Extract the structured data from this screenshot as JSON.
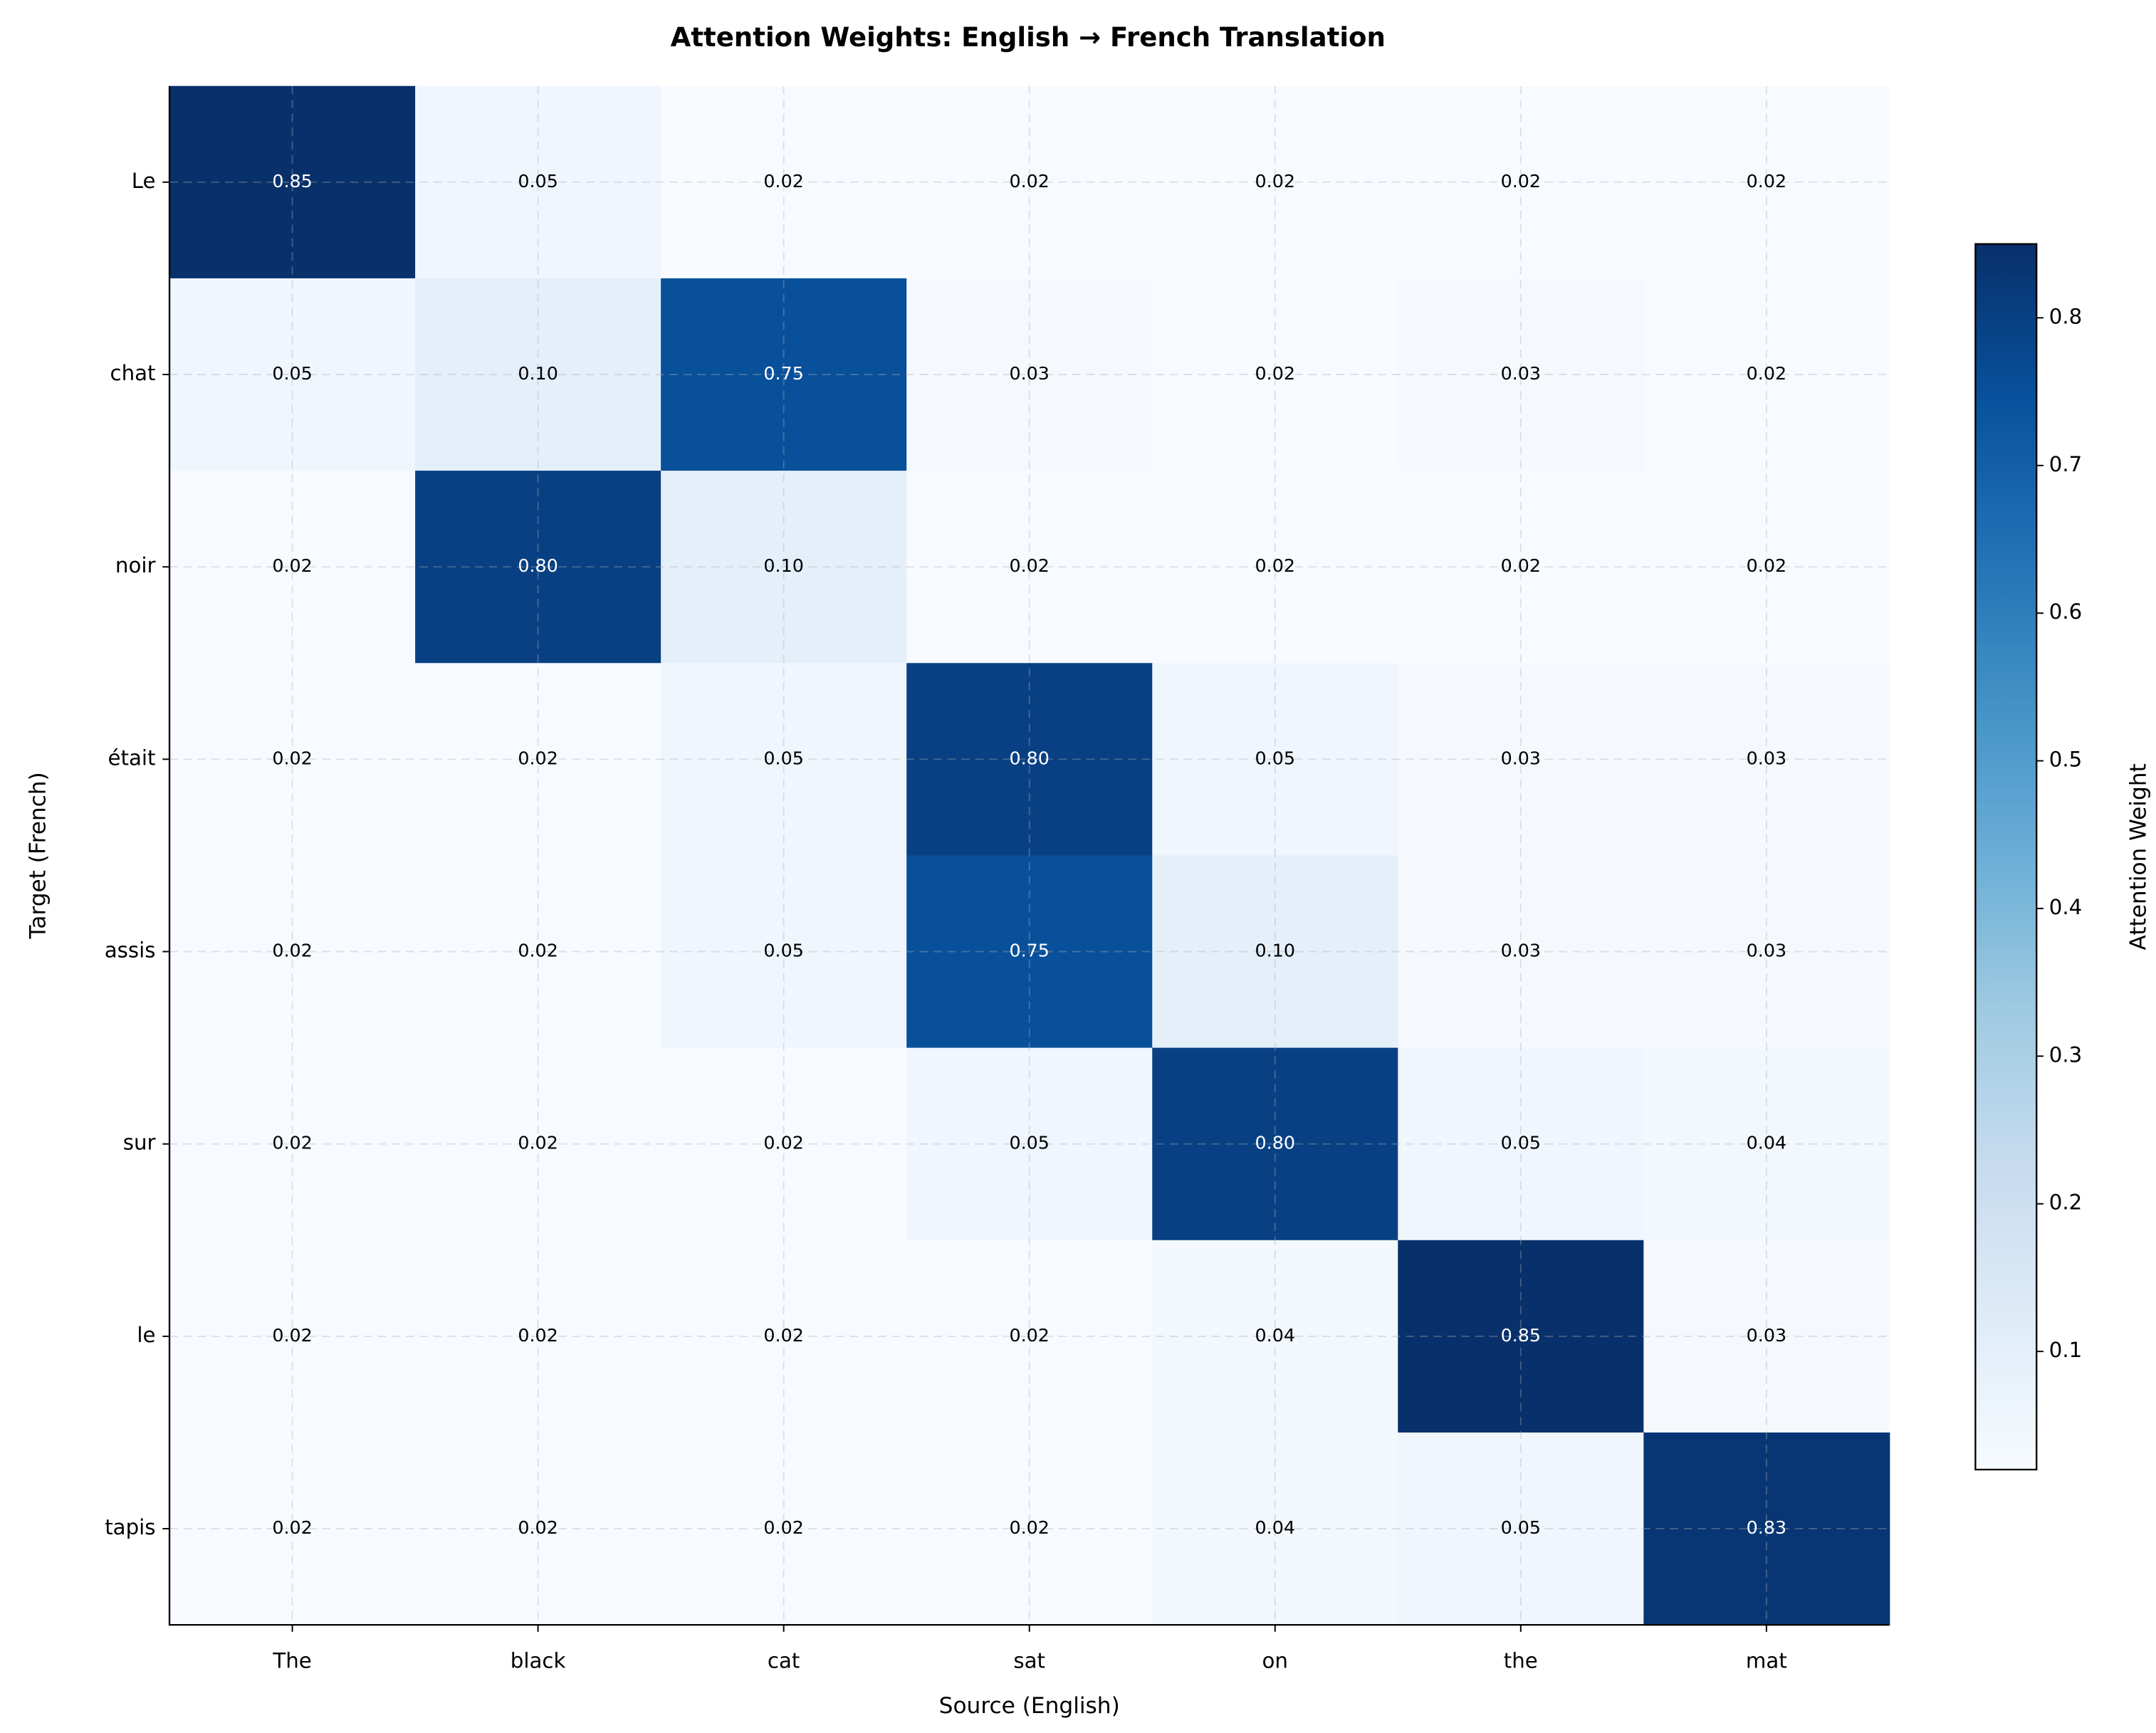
{
  "chart_data": {
    "type": "heatmap",
    "title": "Attention Weights: English → French Translation",
    "x_label": "Source (English)",
    "y_label": "Target (French)",
    "x": [
      "The",
      "black",
      "cat",
      "sat",
      "on",
      "the",
      "mat"
    ],
    "y": [
      "Le",
      "chat",
      "noir",
      "était",
      "assis",
      "sur",
      "le",
      "tapis"
    ],
    "values": [
      [
        0.85,
        0.05,
        0.02,
        0.02,
        0.02,
        0.02,
        0.02
      ],
      [
        0.05,
        0.1,
        0.75,
        0.03,
        0.02,
        0.03,
        0.02
      ],
      [
        0.02,
        0.8,
        0.1,
        0.02,
        0.02,
        0.02,
        0.02
      ],
      [
        0.02,
        0.02,
        0.05,
        0.8,
        0.05,
        0.03,
        0.03
      ],
      [
        0.02,
        0.02,
        0.05,
        0.75,
        0.1,
        0.03,
        0.03
      ],
      [
        0.02,
        0.02,
        0.02,
        0.05,
        0.8,
        0.05,
        0.04
      ],
      [
        0.02,
        0.02,
        0.02,
        0.02,
        0.04,
        0.85,
        0.03
      ],
      [
        0.02,
        0.02,
        0.02,
        0.02,
        0.04,
        0.05,
        0.83
      ]
    ],
    "value_labels": [
      [
        "0.85",
        "0.05",
        "0.02",
        "0.02",
        "0.02",
        "0.02",
        "0.02"
      ],
      [
        "0.05",
        "0.10",
        "0.75",
        "0.03",
        "0.02",
        "0.03",
        "0.02"
      ],
      [
        "0.02",
        "0.80",
        "0.10",
        "0.02",
        "0.02",
        "0.02",
        "0.02"
      ],
      [
        "0.02",
        "0.02",
        "0.05",
        "0.80",
        "0.05",
        "0.03",
        "0.03"
      ],
      [
        "0.02",
        "0.02",
        "0.05",
        "0.75",
        "0.10",
        "0.03",
        "0.03"
      ],
      [
        "0.02",
        "0.02",
        "0.02",
        "0.05",
        "0.80",
        "0.05",
        "0.04"
      ],
      [
        "0.02",
        "0.02",
        "0.02",
        "0.02",
        "0.04",
        "0.85",
        "0.03"
      ],
      [
        "0.02",
        "0.02",
        "0.02",
        "0.02",
        "0.04",
        "0.05",
        "0.83"
      ]
    ],
    "colormap": "Blues",
    "colorbar_label": "Attention Weight",
    "clim": [
      0.02,
      0.85
    ],
    "cticks": [
      0.1,
      0.2,
      0.3,
      0.4,
      0.5,
      0.6,
      0.7,
      0.8
    ],
    "grid": true
  }
}
